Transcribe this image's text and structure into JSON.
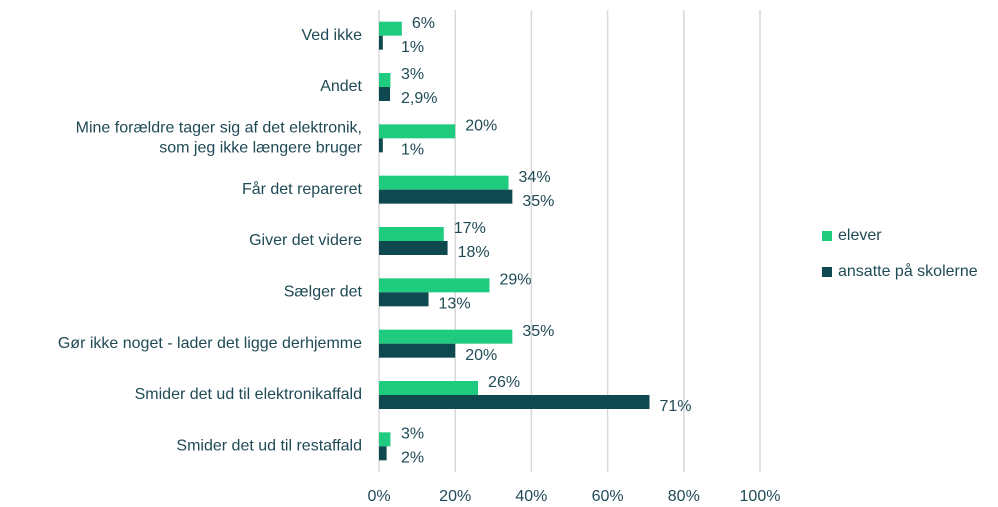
{
  "chart_data": {
    "type": "bar",
    "orientation": "horizontal",
    "categories": [
      "Ved ikke",
      "Andet",
      "Mine forældre tager sig af det elektronik,\nsom jeg ikke længere bruger",
      "Får det repareret",
      "Giver det videre",
      "Sælger det",
      "Gør ikke noget - lader det ligge derhjemme",
      "Smider det ud til elektronikaffald",
      "Smider det ud til restaffald"
    ],
    "series": [
      {
        "name": "elever",
        "color": "#1fcb7e",
        "values": [
          6,
          3,
          20,
          34,
          17,
          29,
          35,
          26,
          3
        ],
        "value_labels": [
          "6%",
          "3%",
          "20%",
          "34%",
          "17%",
          "29%",
          "35%",
          "26%",
          "3%"
        ]
      },
      {
        "name": "ansatte på skolerne",
        "color": "#0e4950",
        "values": [
          1,
          2.9,
          1,
          35,
          18,
          13,
          20,
          71,
          2
        ],
        "value_labels": [
          "1%",
          "2,9%",
          "1%",
          "35%",
          "18%",
          "13%",
          "20%",
          "71%",
          "2%"
        ]
      }
    ],
    "xlim": [
      0,
      100
    ],
    "xticks": [
      {
        "value": 0,
        "label": "0%"
      },
      {
        "value": 20,
        "label": "20%"
      },
      {
        "value": 40,
        "label": "40%"
      },
      {
        "value": 60,
        "label": "60%"
      },
      {
        "value": 80,
        "label": "80%"
      },
      {
        "value": 100,
        "label": "100%"
      }
    ],
    "grid": true,
    "legend": "right"
  }
}
